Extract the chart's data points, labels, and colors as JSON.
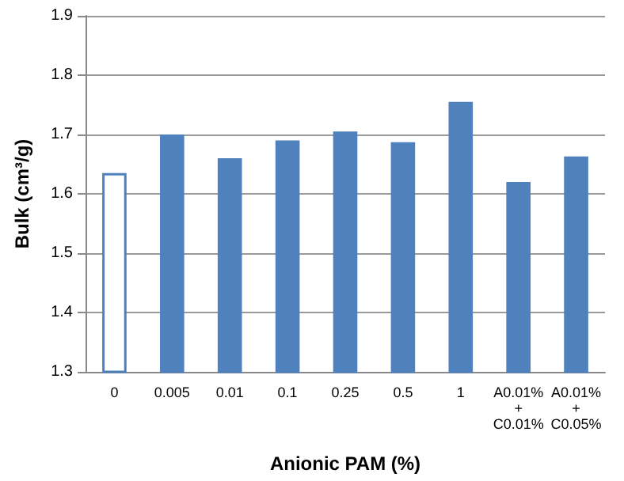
{
  "chart_data": {
    "type": "bar",
    "xlabel": "Anionic PAM (%)",
    "ylabel": "Bulk (cm³/g)",
    "categories": [
      "0",
      "0.005",
      "0.01",
      "0.1",
      "0.25",
      "0.5",
      "1",
      "A0.01%\n+\nC0.01%",
      "A0.01%\n+\nC0.05%"
    ],
    "values": [
      1.635,
      1.7,
      1.66,
      1.69,
      1.705,
      1.687,
      1.755,
      1.62,
      1.663
    ],
    "color": "#4f81bd",
    "colors": [
      "#ffffff",
      "#4f81bd",
      "#4f81bd",
      "#4f81bd",
      "#4f81bd",
      "#4f81bd",
      "#4f81bd",
      "#4f81bd",
      "#4f81bd"
    ],
    "ylim": [
      1.3,
      1.9
    ],
    "yticks": [
      1.3,
      1.4,
      1.5,
      1.6,
      1.7,
      1.8,
      1.9
    ],
    "grid": "y"
  }
}
